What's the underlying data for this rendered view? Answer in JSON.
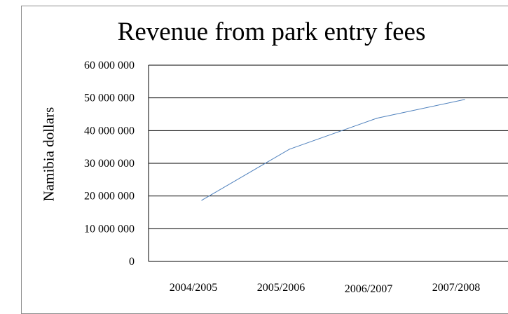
{
  "chart_data": {
    "type": "line",
    "title": "Revenue from park entry fees",
    "xlabel": "",
    "ylabel": "Namibia dollars",
    "categories": [
      "2004/2005",
      "2005/2006",
      "2006/2007",
      "2007/2008"
    ],
    "y_ticks": [
      "0",
      "10 000 000",
      "20 000 000",
      "30 000 000",
      "40 000 000",
      "50 000 000",
      "60 000 000"
    ],
    "ylim": [
      0,
      60000000
    ],
    "grid": true,
    "series": [
      {
        "values": [
          18700000,
          34300000,
          43800000,
          49500000
        ],
        "color": "#4f81bd"
      }
    ]
  }
}
